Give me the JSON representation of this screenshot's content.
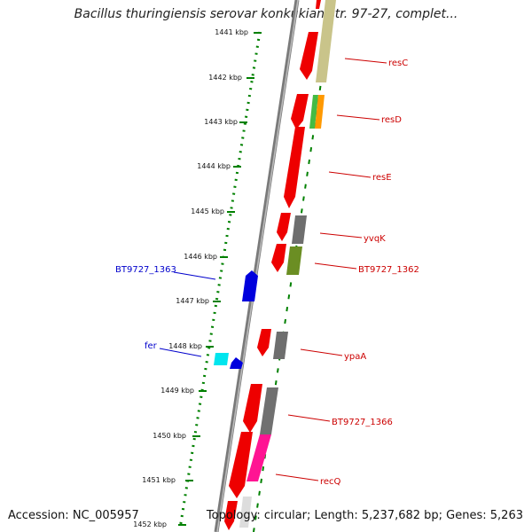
{
  "title": "Bacillus thuringiensis serovar konkukian str. 97-27, complet...",
  "footer": {
    "accession": "Accession: NC_005957",
    "info": "Topology: circular; Length: 5,237,682 bp; Genes: 5,263"
  },
  "colors": {
    "ruler": "#008000",
    "backbone": "#808080",
    "forward_label": "#cc0000",
    "reverse_label": "#0000cc"
  },
  "ruler_ticks": [
    {
      "label": "1441 kbp"
    },
    {
      "label": "1442 kbp"
    },
    {
      "label": "1443 kbp"
    },
    {
      "label": "1444 kbp"
    },
    {
      "label": "1445 kbp"
    },
    {
      "label": "1446 kbp"
    },
    {
      "label": "1447 kbp"
    },
    {
      "label": "1448 kbp"
    },
    {
      "label": "1449 kbp"
    },
    {
      "label": "1450 kbp"
    },
    {
      "label": "1451 kbp"
    },
    {
      "label": "1452 kbp"
    }
  ],
  "forward_labels": [
    "resC",
    "resD",
    "resE",
    "yvqK",
    "BT9727_1362",
    "ypaA",
    "BT9727_1366",
    "recQ"
  ],
  "reverse_labels": [
    "BT9727_1363",
    "fer"
  ]
}
